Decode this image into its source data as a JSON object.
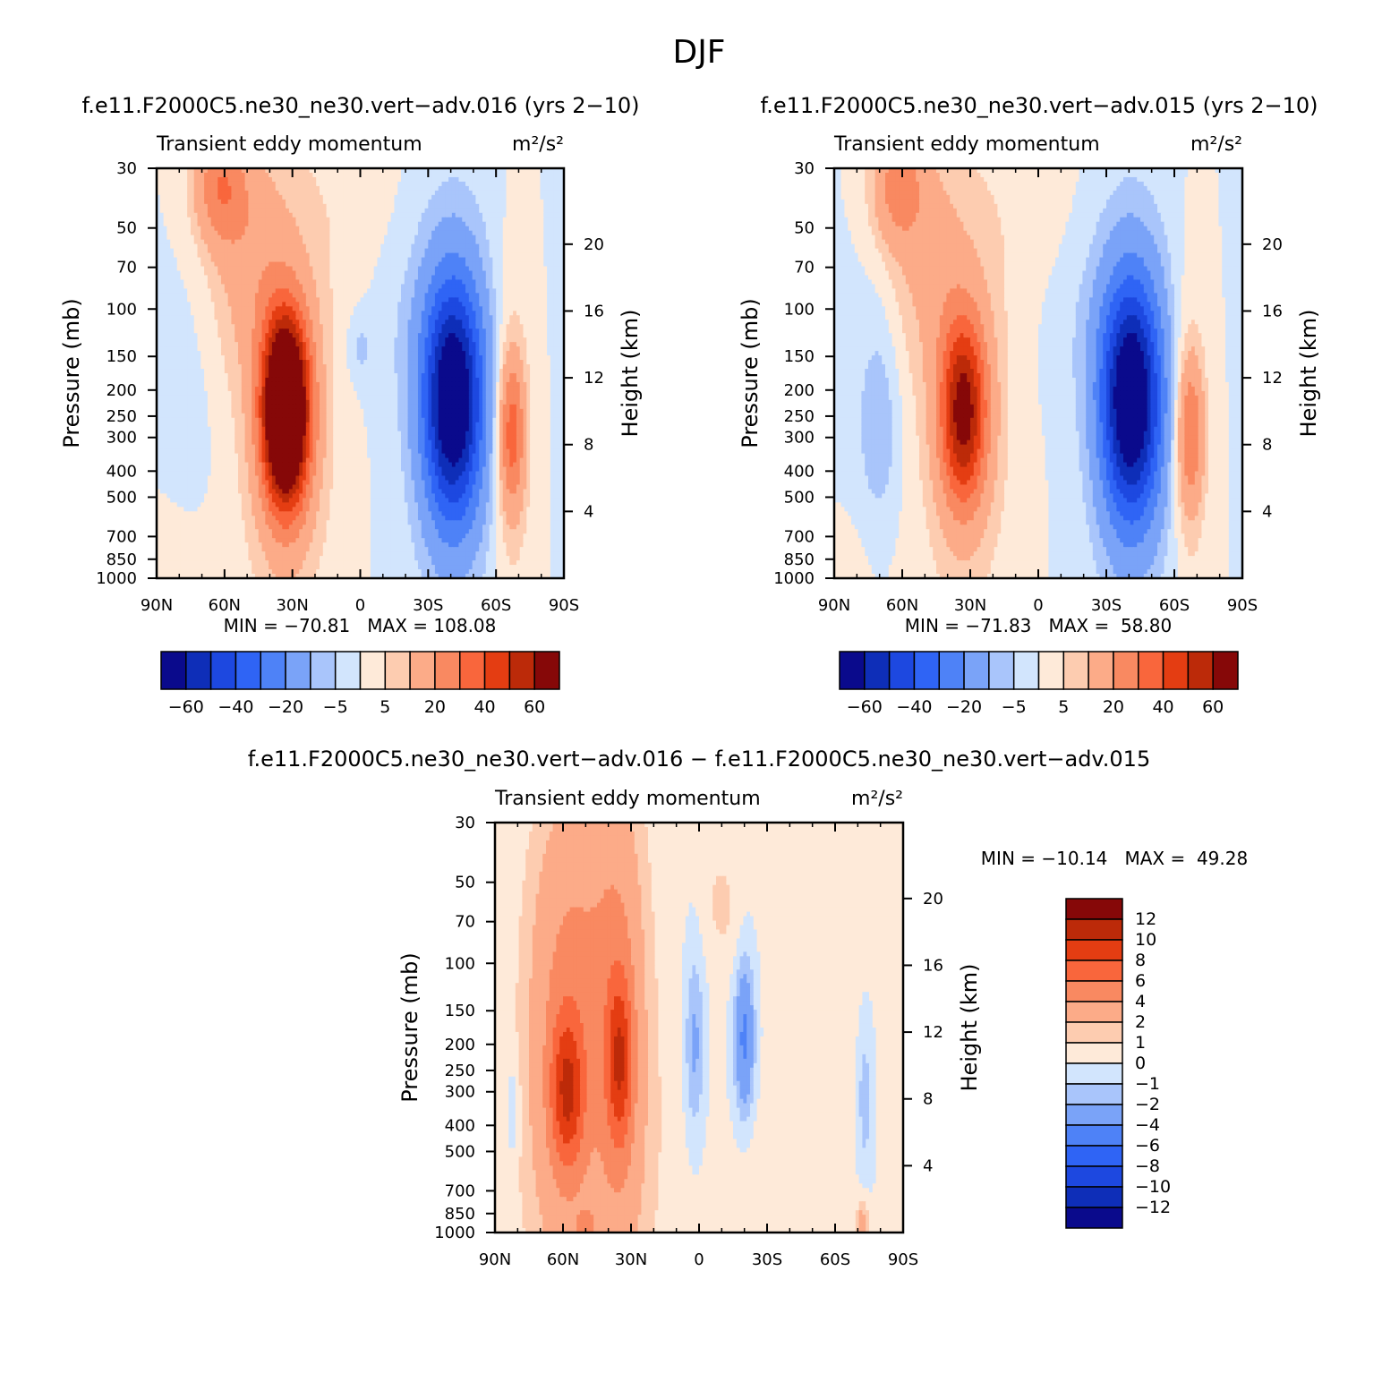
{
  "figure_title": "DJF",
  "chart_data": [
    {
      "type": "heatmap",
      "title": "f.e11.F2000C5.ne30_ne30.vert−adv.016 (yrs 2−10)",
      "subtitle": "Transient eddy momentum",
      "units": "m²/s²",
      "xlabel": "",
      "ylabel": "Pressure (mb)",
      "y2label": "Height (km)",
      "x_ticks": [
        "90N",
        "60N",
        "30N",
        "0",
        "30S",
        "60S",
        "90S"
      ],
      "x_range": [
        90,
        -90
      ],
      "y_ticks": [
        30,
        50,
        70,
        100,
        150,
        200,
        250,
        300,
        400,
        500,
        700,
        850,
        1000
      ],
      "y_range": [
        30,
        1000
      ],
      "y_scale": "log",
      "y2_ticks": [
        4,
        8,
        12,
        16,
        20
      ],
      "min_max_text": "MIN = −70.81   MAX = 108.08",
      "min": -70.81,
      "max": 108.08,
      "colorbar_labels": [
        "−60",
        "−40",
        "−20",
        "−5",
        "5",
        "20",
        "40",
        "60"
      ],
      "colorbar_orientation": "horizontal",
      "features": [
        {
          "lat": 62,
          "p": 35,
          "value": 25,
          "wlat": 8,
          "wlnp": 0.35
        },
        {
          "lat": 33,
          "p": 240,
          "value": 108,
          "wlat": 7,
          "wlnp": 0.55
        },
        {
          "lat": 33,
          "p": 240,
          "value": 12,
          "wlat": 15,
          "wlnp": 1.3
        },
        {
          "lat": 50,
          "p": 60,
          "value": 12,
          "wlat": 12,
          "wlnp": 0.7
        },
        {
          "lat": -41,
          "p": 220,
          "value": -71,
          "wlat": 9,
          "wlnp": 0.7
        },
        {
          "lat": -41,
          "p": 220,
          "value": -8,
          "wlat": 15,
          "wlnp": 1.4
        },
        {
          "lat": -22,
          "p": 110,
          "value": -3,
          "wlat": 20,
          "wlnp": 0.6
        },
        {
          "lat": 0,
          "p": 140,
          "value": -6,
          "wlat": 4,
          "wlnp": 0.2
        },
        {
          "lat": -67,
          "p": 290,
          "value": 30,
          "wlat": 4,
          "wlnp": 0.45
        },
        {
          "lat": -67,
          "p": 290,
          "value": 8,
          "wlat": 6,
          "wlnp": 1.1
        },
        {
          "lat": 75,
          "p": 250,
          "value": -2,
          "wlat": 10,
          "wlnp": 1.0
        },
        {
          "lat": 5,
          "p": 40,
          "value": 3,
          "wlat": 18,
          "wlnp": 0.8
        },
        {
          "lat": 80,
          "p": 800,
          "value": 2,
          "wlat": 12,
          "wlnp": 0.4
        }
      ]
    },
    {
      "type": "heatmap",
      "title": "f.e11.F2000C5.ne30_ne30.vert−adv.015 (yrs 2−10)",
      "subtitle": "Transient eddy momentum",
      "units": "m²/s²",
      "xlabel": "",
      "ylabel": "Pressure (mb)",
      "y2label": "Height (km)",
      "x_ticks": [
        "90N",
        "60N",
        "30N",
        "0",
        "30S",
        "60S",
        "90S"
      ],
      "x_range": [
        90,
        -90
      ],
      "y_ticks": [
        30,
        50,
        70,
        100,
        150,
        200,
        250,
        300,
        400,
        500,
        700,
        850,
        1000
      ],
      "y_range": [
        30,
        1000
      ],
      "y_scale": "log",
      "y2_ticks": [
        4,
        8,
        12,
        16,
        20
      ],
      "min_max_text": "MIN = −71.83   MAX =  58.80",
      "min": -71.83,
      "max": 58.8,
      "colorbar_labels": [
        "−60",
        "−40",
        "−20",
        "−5",
        "5",
        "20",
        "40",
        "60"
      ],
      "colorbar_orientation": "horizontal",
      "features": [
        {
          "lat": 62,
          "p": 35,
          "value": 22,
          "wlat": 8,
          "wlnp": 0.35
        },
        {
          "lat": 33,
          "p": 240,
          "value": 58,
          "wlat": 7,
          "wlnp": 0.55
        },
        {
          "lat": 33,
          "p": 240,
          "value": 10,
          "wlat": 15,
          "wlnp": 1.3
        },
        {
          "lat": 50,
          "p": 60,
          "value": 10,
          "wlat": 12,
          "wlnp": 0.7
        },
        {
          "lat": -41,
          "p": 220,
          "value": -72,
          "wlat": 9,
          "wlnp": 0.7
        },
        {
          "lat": -41,
          "p": 220,
          "value": -8,
          "wlat": 15,
          "wlnp": 1.4
        },
        {
          "lat": -22,
          "p": 110,
          "value": -3,
          "wlat": 20,
          "wlnp": 0.6
        },
        {
          "lat": -67,
          "p": 290,
          "value": 26,
          "wlat": 4,
          "wlnp": 0.45
        },
        {
          "lat": -67,
          "p": 290,
          "value": 7,
          "wlat": 6,
          "wlnp": 1.1
        },
        {
          "lat": 70,
          "p": 270,
          "value": -8,
          "wlat": 6,
          "wlnp": 0.6
        },
        {
          "lat": 75,
          "p": 250,
          "value": -2,
          "wlat": 12,
          "wlnp": 1.1
        },
        {
          "lat": 5,
          "p": 40,
          "value": 3,
          "wlat": 18,
          "wlnp": 0.8
        },
        {
          "lat": 80,
          "p": 800,
          "value": 2,
          "wlat": 12,
          "wlnp": 0.4
        }
      ]
    },
    {
      "type": "heatmap",
      "title": "f.e11.F2000C5.ne30_ne30.vert−adv.016 − f.e11.F2000C5.ne30_ne30.vert−adv.015",
      "subtitle": "Transient eddy momentum",
      "units": "m²/s²",
      "xlabel": "",
      "ylabel": "Pressure (mb)",
      "y2label": "Height (km)",
      "x_ticks": [
        "90N",
        "60N",
        "30N",
        "0",
        "30S",
        "60S",
        "90S"
      ],
      "x_range": [
        90,
        -90
      ],
      "y_ticks": [
        30,
        50,
        70,
        100,
        150,
        200,
        250,
        300,
        400,
        500,
        700,
        850,
        1000
      ],
      "y_range": [
        30,
        1000
      ],
      "y_scale": "log",
      "y2_ticks": [
        4,
        8,
        12,
        16,
        20
      ],
      "min_max_text": "MIN = −10.14   MAX =  49.28",
      "min": -10.14,
      "max": 49.28,
      "colorbar_labels": [
        "12",
        "10",
        "8",
        "6",
        "4",
        "2",
        "1",
        "0",
        "−1",
        "−2",
        "−4",
        "−6",
        "−8",
        "−10",
        "−12"
      ],
      "colorbar_orientation": "vertical",
      "features": [
        {
          "lat": 58,
          "p": 300,
          "value": 6.5,
          "wlat": 5,
          "wlnp": 0.45
        },
        {
          "lat": 60,
          "p": 220,
          "value": 3,
          "wlat": 11,
          "wlnp": 1.3
        },
        {
          "lat": 35,
          "p": 230,
          "value": 6,
          "wlat": 4,
          "wlnp": 0.5
        },
        {
          "lat": 35,
          "p": 180,
          "value": 3,
          "wlat": 8,
          "wlnp": 1.5
        },
        {
          "lat": 50,
          "p": 60,
          "value": 2,
          "wlat": 16,
          "wlnp": 1.0
        },
        {
          "lat": 45,
          "p": 500,
          "value": 1.5,
          "wlat": 24,
          "wlnp": 1.2
        },
        {
          "lat": 2,
          "p": 200,
          "value": -2.5,
          "wlat": 3,
          "wlnp": 0.55
        },
        {
          "lat": -20,
          "p": 190,
          "value": -4.5,
          "wlat": 3,
          "wlnp": 0.45
        },
        {
          "lat": -73,
          "p": 320,
          "value": -1.8,
          "wlat": 2,
          "wlnp": 0.4
        },
        {
          "lat": 82,
          "p": 350,
          "value": -1.5,
          "wlat": 2,
          "wlnp": 0.3
        },
        {
          "lat": -10,
          "p": 60,
          "value": 1.2,
          "wlat": 6,
          "wlnp": 0.4
        },
        {
          "lat": -50,
          "p": 120,
          "value": 0.8,
          "wlat": 12,
          "wlnp": 1.5
        },
        {
          "lat": -30,
          "p": 800,
          "value": 0.8,
          "wlat": 12,
          "wlnp": 0.5
        },
        {
          "lat": -72,
          "p": 950,
          "value": 3,
          "wlat": 2,
          "wlnp": 0.15
        },
        {
          "lat": 50,
          "p": 980,
          "value": 3,
          "wlat": 3,
          "wlnp": 0.12
        }
      ]
    }
  ],
  "palette": {
    "neg": [
      "#0a0a8c",
      "#0e2eb8",
      "#1d48e0",
      "#2f64f5",
      "#4e82f7",
      "#7aa3f8",
      "#a9c5fb",
      "#d2e5fd"
    ],
    "pos": [
      "#feead9",
      "#fdccb0",
      "#fcab88",
      "#f98961",
      "#f9663c",
      "#e43d12",
      "#bc2a09",
      "#860808"
    ]
  }
}
